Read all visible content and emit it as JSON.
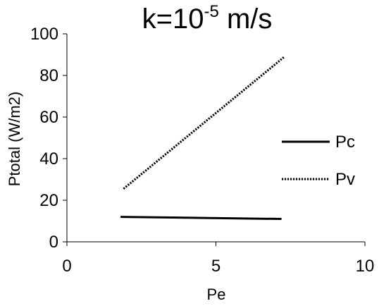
{
  "chart_data": {
    "type": "line",
    "title": {
      "prefix": "k=10",
      "superscript": "-5",
      "suffix": " m/s"
    },
    "xlabel": "Pe",
    "ylabel": "Ptotal (W/m2)",
    "xlim": [
      0,
      10
    ],
    "ylim": [
      0,
      100
    ],
    "xticks": [
      0,
      5,
      10
    ],
    "yticks": [
      0,
      20,
      40,
      60,
      80,
      100
    ],
    "grid": false,
    "legend_position": "right",
    "series": [
      {
        "name": "Pc",
        "style": "solid",
        "color": "#000000",
        "x": [
          1.8,
          7.2
        ],
        "y": [
          12,
          11
        ]
      },
      {
        "name": "Pv",
        "style": "dotted",
        "color": "#000000",
        "x": [
          1.9,
          7.3
        ],
        "y": [
          25.5,
          89
        ]
      }
    ]
  }
}
